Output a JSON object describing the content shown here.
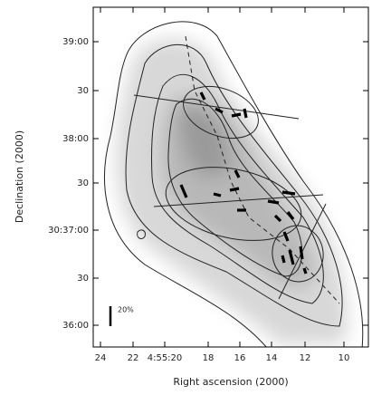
{
  "axes": {
    "x_label": "Right ascension (2000)",
    "y_label": "Declination (2000)",
    "x_ticks": [
      "24",
      "22",
      "4:55:20",
      "18",
      "16",
      "14",
      "12",
      "10"
    ],
    "y_ticks": [
      "39:00",
      "30",
      "38:00",
      "30",
      "30:37:00",
      "30",
      "36:00"
    ]
  },
  "scale_bar": {
    "label": "20%"
  }
}
